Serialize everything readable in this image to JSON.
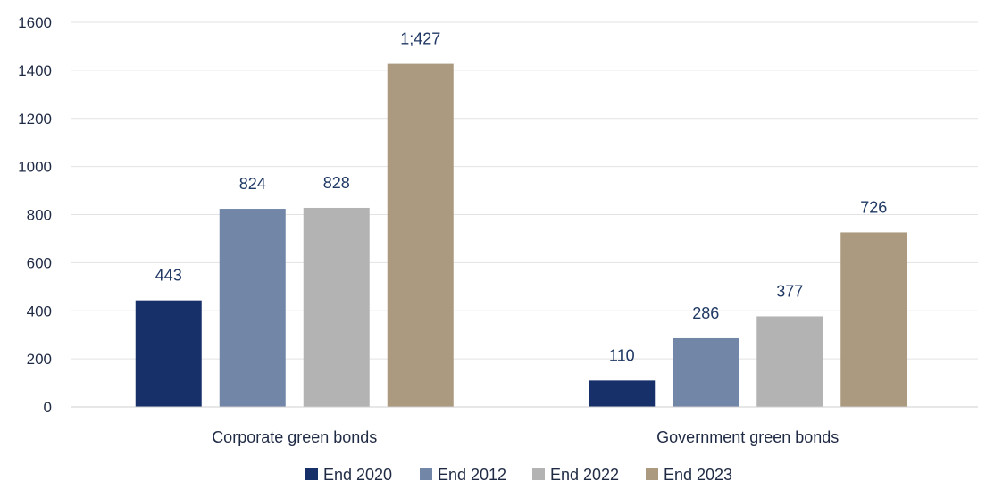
{
  "chart_data": {
    "type": "bar",
    "title": "",
    "xlabel": "",
    "ylabel": "",
    "ylim": [
      0,
      1600
    ],
    "yticks": [
      0,
      200,
      400,
      600,
      800,
      1000,
      1200,
      1400,
      1600
    ],
    "grid": true,
    "legend_position": "bottom",
    "categories": [
      "Corporate green bonds",
      "Government green bonds"
    ],
    "series": [
      {
        "name": "End 2020",
        "color": "#17306a",
        "values": [
          443,
          110
        ],
        "labels": [
          "443",
          "110"
        ]
      },
      {
        "name": "End 2012",
        "color": "#7286a8",
        "values": [
          824,
          286
        ],
        "labels": [
          "824",
          "286"
        ]
      },
      {
        "name": "End 2022",
        "color": "#b3b3b3",
        "values": [
          828,
          377
        ],
        "labels": [
          "828",
          "377"
        ]
      },
      {
        "name": "End 2023",
        "color": "#ab9a7f",
        "values": [
          1427,
          726
        ],
        "labels": [
          "1;427",
          "726"
        ]
      }
    ]
  }
}
